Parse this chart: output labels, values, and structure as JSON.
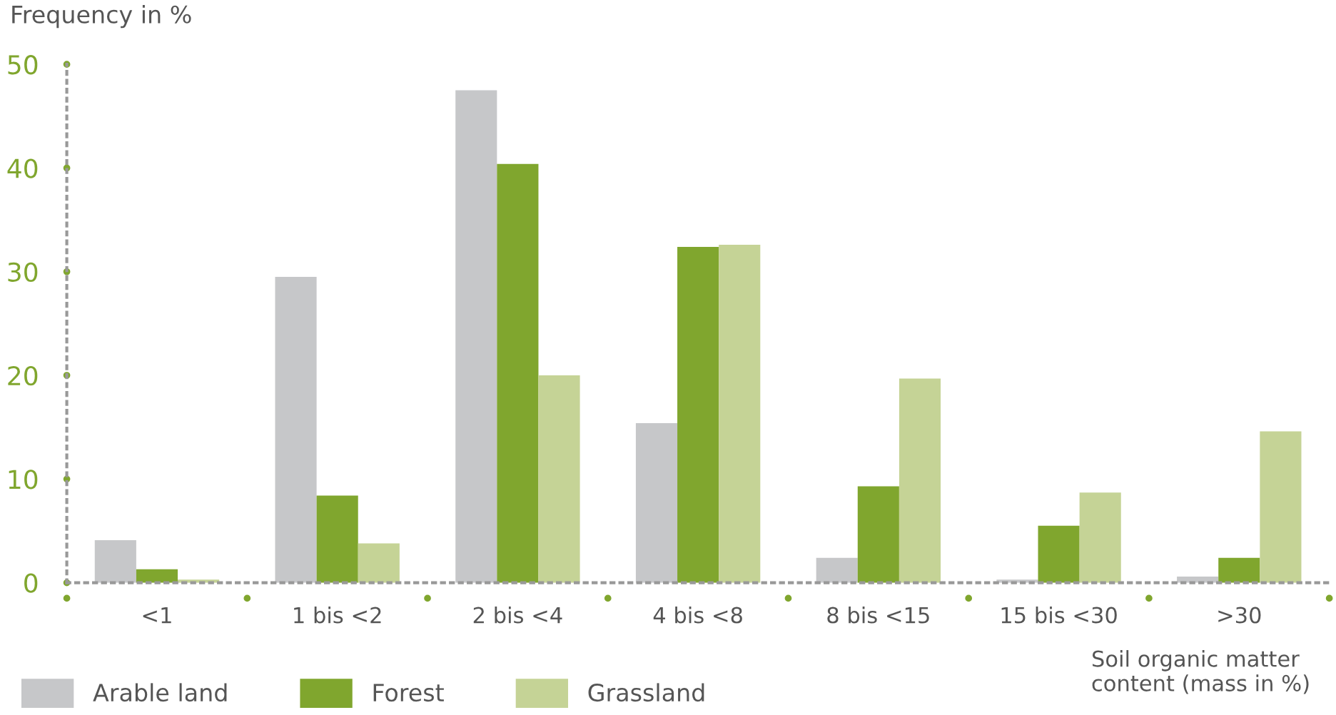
{
  "chart_data": {
    "type": "bar",
    "ylabel": "Frequency in %",
    "xlabel": "Soil organic matter\ncontent (mass in %)",
    "categories": [
      "<1",
      "1 bis <2",
      "2 bis <4",
      "4 bis <8",
      "8 bis <15",
      "15 bis <30",
      ">30"
    ],
    "series": [
      {
        "name": "Arable land",
        "color": "#c6c7c9",
        "values": [
          4.1,
          29.5,
          47.5,
          15.4,
          2.4,
          0.3,
          0.6
        ]
      },
      {
        "name": "Forest",
        "color": "#80a62e",
        "values": [
          1.3,
          8.4,
          40.4,
          32.4,
          9.3,
          5.5,
          2.4
        ]
      },
      {
        "name": "Grassland",
        "color": "#c5d396",
        "values": [
          0.3,
          3.8,
          20.0,
          32.6,
          19.7,
          8.7,
          14.6
        ]
      }
    ],
    "ylim": [
      0,
      50
    ],
    "yticks": [
      0,
      10,
      20,
      30,
      40,
      50
    ],
    "grid": false,
    "legend": "bottom left"
  }
}
